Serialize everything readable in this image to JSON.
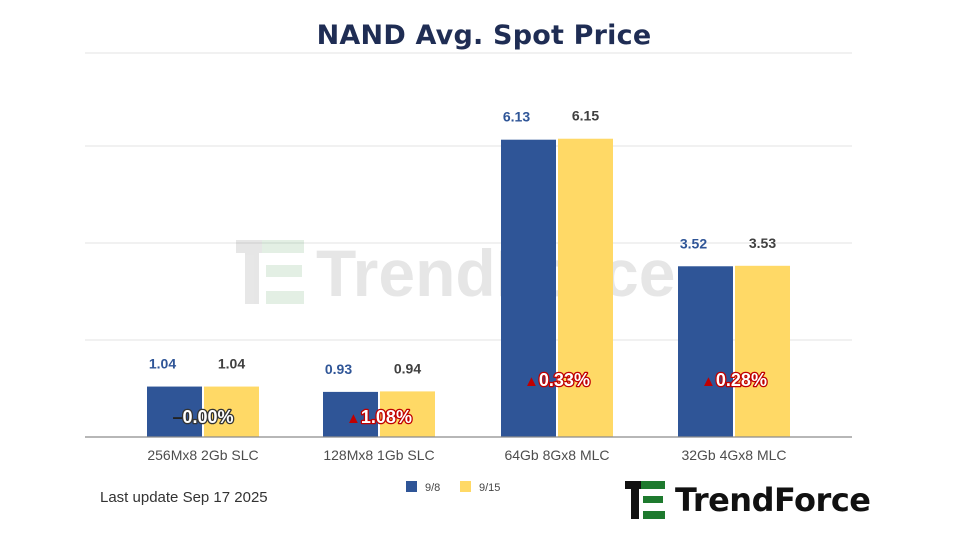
{
  "page": {
    "title": "NAND Avg. Spot Price",
    "footnote": "Last update Sep 17  2025",
    "watermark_text": "TrendForce",
    "brand_name": "TrendForce"
  },
  "chart_data": {
    "type": "bar",
    "title": "NAND Avg. Spot Price",
    "xlabel": "",
    "ylabel": "",
    "ylim": [
      0,
      7
    ],
    "grid": true,
    "legend_position": "bottom",
    "categories": [
      "256Mx8 2Gb SLC",
      "128Mx8 1Gb SLC",
      "64Gb 8Gx8 MLC",
      "32Gb 4Gx8 MLC"
    ],
    "series": [
      {
        "name": "9/8",
        "values": [
          1.04,
          0.93,
          6.13,
          3.52
        ],
        "labels": [
          "1.04",
          "0.93",
          "6.13",
          "3.52"
        ],
        "color": "#2f5597"
      },
      {
        "name": "9/15",
        "values": [
          1.04,
          0.94,
          6.15,
          3.53
        ],
        "labels": [
          "1.04",
          "0.94",
          "6.15",
          "3.53"
        ],
        "color": "#ffd966"
      }
    ],
    "changes": [
      {
        "symbol": "–",
        "text": "0.00%",
        "direction": "flat"
      },
      {
        "symbol": "▲",
        "text": "1.08%",
        "direction": "up"
      },
      {
        "symbol": "▲",
        "text": "0.33%",
        "direction": "up"
      },
      {
        "symbol": "▲",
        "text": "0.28%",
        "direction": "up"
      }
    ],
    "colors": {
      "series_1": "#2f5597",
      "series_2": "#ffd966",
      "series_1_label": "#2f5597",
      "series_2_label": "#404040",
      "change_up": "#c00000",
      "change_text": "#ffffff",
      "grid": "#e3e3e3",
      "axis": "#8c8c8c",
      "title": "#1f2d54",
      "brand_green": "#1e7a2e",
      "brand_dark": "#111111"
    }
  }
}
